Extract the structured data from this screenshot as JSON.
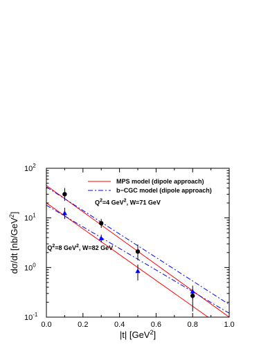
{
  "chart_data": {
    "type": "line",
    "xlabel": "|t| [GeV²]",
    "ylabel": "dσ/dt [nb/GeV²]",
    "xlim": [
      0.0,
      1.0
    ],
    "ylim": [
      0.1,
      100
    ],
    "yscale": "log",
    "grid": false,
    "legend_position": "top-right",
    "x_ticks": [
      "0.0",
      "0.2",
      "0.4",
      "0.6",
      "0.8",
      "1.0"
    ],
    "y_ticks": [
      {
        "base": "10",
        "exp": "-1",
        "value": 0.1
      },
      {
        "base": "10",
        "exp": "0",
        "value": 1
      },
      {
        "base": "10",
        "exp": "1",
        "value": 10
      },
      {
        "base": "10",
        "exp": "2",
        "value": 100
      }
    ],
    "legend": [
      {
        "label": "MPS model (dipole approach)",
        "color": "#ff0000",
        "dash": "solid"
      },
      {
        "label": "b−CGC model (dipole approach)",
        "color": "#0000ff",
        "dash": "dashdot"
      }
    ],
    "annotations": [
      {
        "main": "Q",
        "sup1": "2",
        "mid": "=4 GeV",
        "sup2": "2",
        "tail": ", W=71 GeV",
        "x": 0.265,
        "y": 18.5
      },
      {
        "main": "Q",
        "sup1": "2",
        "mid": "=8 GeV",
        "sup2": "2",
        "tail": ", W=82 GeV",
        "x": 0.005,
        "y": 2.25
      }
    ],
    "series": [
      {
        "model": "MPS",
        "set": "Q2=4",
        "color": "#ff0000",
        "dash": "solid",
        "x": [
          0.0,
          1.0
        ],
        "y": [
          45,
          0.1
        ]
      },
      {
        "model": "MPS",
        "set": "Q2=8",
        "color": "#ff0000",
        "dash": "solid",
        "x": [
          0.0,
          1.0
        ],
        "y": [
          20,
          0.05
        ]
      },
      {
        "model": "b-CGC",
        "set": "Q2=4",
        "color": "#0000ff",
        "dash": "dashdot",
        "x": [
          0.0,
          1.0
        ],
        "y": [
          42,
          0.18
        ]
      },
      {
        "model": "b-CGC",
        "set": "Q2=8",
        "color": "#0000ff",
        "dash": "dashdot",
        "x": [
          0.0,
          1.0
        ],
        "y": [
          18,
          0.12
        ]
      }
    ],
    "points": [
      {
        "set": "Q2=4 GeV2, W=71 GeV",
        "marker": "circle",
        "color": "#000000",
        "x": [
          0.1,
          0.3,
          0.5,
          0.8
        ],
        "y": [
          30,
          7.8,
          2.1,
          0.27
        ],
        "ylo": [
          22,
          6.3,
          1.4,
          0.13
        ],
        "yhi": [
          40,
          9.5,
          2.9,
          0.37
        ]
      },
      {
        "set": "Q2=8 GeV2, W=82 GeV",
        "marker": "triangle",
        "color": "#0000ff",
        "x": [
          0.1,
          0.3,
          0.5,
          0.8
        ],
        "y": [
          12.5,
          3.9,
          0.85,
          0.33
        ],
        "ylo": [
          9.5,
          3.2,
          0.55,
          0.23
        ],
        "yhi": [
          16,
          4.6,
          1.15,
          0.43
        ]
      }
    ]
  }
}
